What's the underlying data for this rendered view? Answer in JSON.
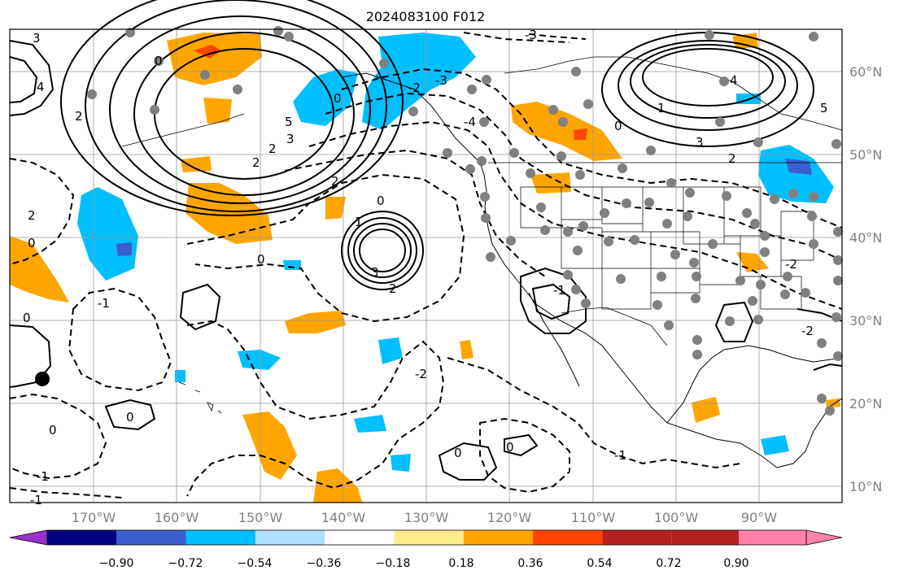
{
  "title": "2024083100 F012",
  "map": {
    "lon_ticks": [
      "170°W",
      "160°W",
      "150°W",
      "140°W",
      "130°W",
      "120°W",
      "110°W",
      "100°W",
      "90°W"
    ],
    "lat_ticks": [
      "60°N",
      "50°N",
      "40°N",
      "30°N",
      "20°N",
      "10°N"
    ],
    "contour_labels": [
      "3",
      "4",
      "2",
      "0",
      "5",
      "3",
      "2",
      "2",
      "0",
      "-3",
      "-4",
      "-2",
      "2",
      "0",
      "1",
      "3",
      "2",
      "2",
      "0",
      "0",
      "-1",
      "-2",
      "0",
      "0",
      "-1",
      "0",
      "-1",
      "0",
      "4",
      "3",
      "2",
      "5",
      "1",
      "0",
      "0",
      "-1",
      "-2",
      "-3",
      "-2",
      "-1"
    ]
  },
  "colorbar": {
    "tick_labels": [
      "−0.90",
      "−0.72",
      "−0.54",
      "−0.36",
      "−0.18",
      "0.18",
      "0.36",
      "0.54",
      "0.72",
      "0.90"
    ],
    "colors": [
      "#9932cc",
      "#000080",
      "#3a5fcd",
      "#00bfff",
      "#b0e2ff",
      "#ffffff",
      "#ffec8b",
      "#ffa500",
      "#ff4500",
      "#b22222",
      "#ff82ab"
    ]
  }
}
